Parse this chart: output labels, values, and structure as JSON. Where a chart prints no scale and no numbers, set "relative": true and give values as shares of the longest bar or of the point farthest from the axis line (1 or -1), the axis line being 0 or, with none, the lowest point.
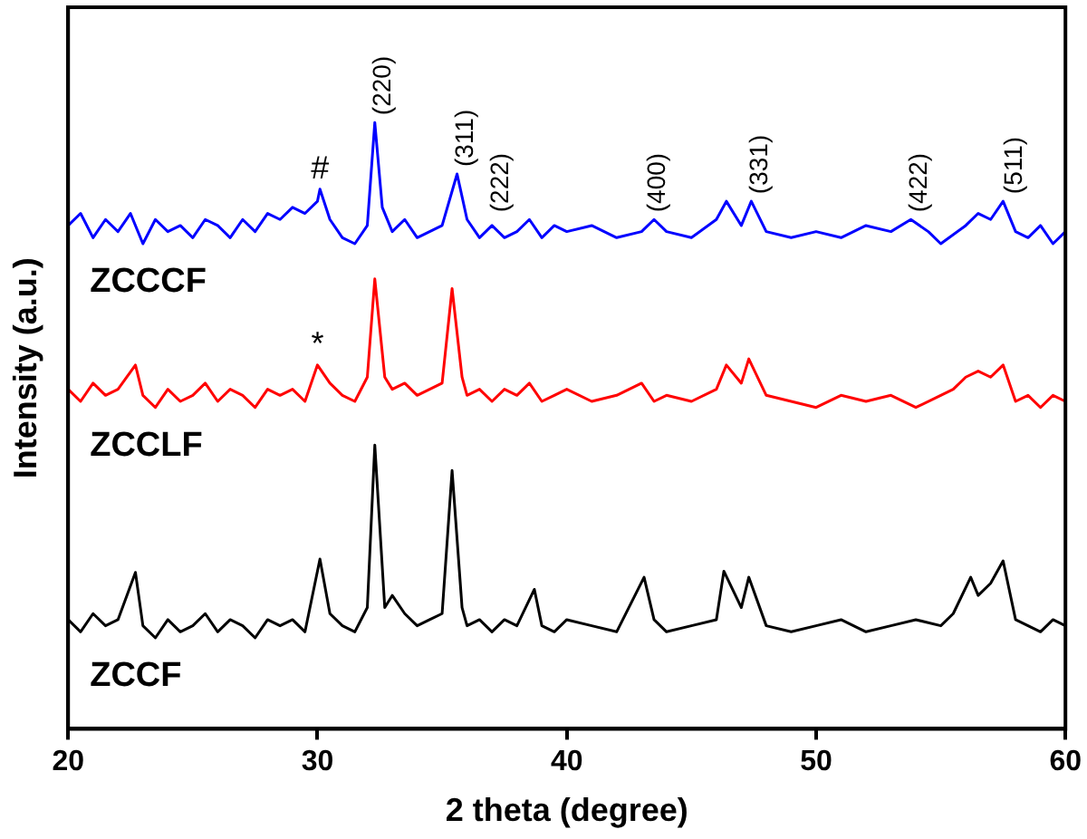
{
  "chart_data": {
    "type": "line",
    "relative": true,
    "xlabel": "2 theta (degree)",
    "ylabel": "Intensity (a.u.)",
    "xlim": [
      20,
      60
    ],
    "xticks": [
      20,
      30,
      40,
      50,
      60
    ],
    "legend": false,
    "grid": false,
    "marker": "none",
    "line_style": "solid",
    "series": [
      {
        "name": "ZCCCF",
        "color": "#0000ff",
        "x": [
          20,
          20.5,
          21,
          21.5,
          22,
          22.5,
          23,
          23.5,
          24,
          24.5,
          25,
          25.5,
          26,
          26.5,
          27,
          27.5,
          28,
          28.5,
          29,
          29.5,
          30,
          30.1,
          30.5,
          31,
          31.5,
          32,
          32.3,
          32.6,
          33,
          33.5,
          34,
          34.5,
          35,
          35.6,
          36,
          36.5,
          37,
          37.5,
          38,
          38.5,
          39,
          39.5,
          40,
          41,
          42,
          43,
          43.5,
          44,
          45,
          46,
          46.4,
          47,
          47.4,
          48,
          49,
          50,
          51,
          52,
          53,
          53.8,
          54.5,
          55,
          56,
          56.5,
          57,
          57.5,
          58,
          58.5,
          59,
          59.5,
          60
        ],
        "values": [
          0.83,
          0.85,
          0.81,
          0.84,
          0.82,
          0.85,
          0.8,
          0.84,
          0.82,
          0.83,
          0.81,
          0.84,
          0.83,
          0.81,
          0.84,
          0.82,
          0.85,
          0.84,
          0.86,
          0.85,
          0.87,
          0.89,
          0.84,
          0.81,
          0.8,
          0.83,
          1.0,
          0.86,
          0.82,
          0.84,
          0.81,
          0.82,
          0.83,
          0.915,
          0.84,
          0.81,
          0.83,
          0.81,
          0.82,
          0.84,
          0.81,
          0.83,
          0.82,
          0.83,
          0.81,
          0.82,
          0.84,
          0.82,
          0.81,
          0.84,
          0.87,
          0.83,
          0.87,
          0.82,
          0.81,
          0.82,
          0.81,
          0.83,
          0.82,
          0.84,
          0.82,
          0.8,
          0.83,
          0.85,
          0.84,
          0.87,
          0.82,
          0.81,
          0.83,
          0.8,
          0.82
        ]
      },
      {
        "name": "ZCCLF",
        "color": "#ff0000",
        "x": [
          20,
          20.5,
          21,
          21.5,
          22,
          22.7,
          23,
          23.5,
          24,
          24.5,
          25,
          25.5,
          26,
          26.5,
          27,
          27.5,
          28,
          28.5,
          29,
          29.5,
          30,
          30.5,
          31,
          31.5,
          32,
          32.3,
          32.7,
          33,
          33.5,
          34,
          34.5,
          35,
          35.4,
          35.8,
          36,
          36.5,
          37,
          37.5,
          38,
          38.5,
          39,
          39.5,
          40,
          41,
          42,
          43,
          43.5,
          44,
          45,
          46,
          46.4,
          47,
          47.3,
          48,
          49,
          50,
          51,
          52,
          53,
          54,
          55,
          55.5,
          56,
          56.5,
          57,
          57.5,
          58,
          58.5,
          59,
          59.5,
          60
        ],
        "values": [
          0.56,
          0.54,
          0.57,
          0.55,
          0.56,
          0.6,
          0.55,
          0.53,
          0.56,
          0.54,
          0.55,
          0.57,
          0.54,
          0.56,
          0.55,
          0.53,
          0.56,
          0.55,
          0.56,
          0.54,
          0.6,
          0.57,
          0.55,
          0.54,
          0.58,
          0.742,
          0.58,
          0.56,
          0.57,
          0.55,
          0.56,
          0.57,
          0.726,
          0.58,
          0.55,
          0.56,
          0.54,
          0.56,
          0.55,
          0.57,
          0.54,
          0.55,
          0.56,
          0.54,
          0.55,
          0.57,
          0.54,
          0.55,
          0.54,
          0.56,
          0.6,
          0.57,
          0.61,
          0.55,
          0.54,
          0.53,
          0.55,
          0.54,
          0.55,
          0.53,
          0.55,
          0.56,
          0.58,
          0.59,
          0.58,
          0.6,
          0.54,
          0.55,
          0.53,
          0.55,
          0.54
        ]
      },
      {
        "name": "ZCCF",
        "color": "#000000",
        "x": [
          20,
          20.5,
          21,
          21.5,
          22,
          22.7,
          23,
          23.5,
          24,
          24.5,
          25,
          25.5,
          26,
          26.5,
          27,
          27.5,
          28,
          28.5,
          29,
          29.5,
          30.1,
          30.5,
          31,
          31.5,
          32,
          32.3,
          32.7,
          33,
          33.5,
          34,
          34.5,
          35,
          35.4,
          35.8,
          36,
          36.5,
          37,
          37.5,
          38,
          38.7,
          39,
          39.5,
          40,
          41,
          42,
          43.1,
          43.5,
          44,
          45,
          46,
          46.3,
          47,
          47.3,
          48,
          49,
          50,
          51,
          52,
          53,
          54,
          55,
          55.5,
          56.2,
          56.5,
          57,
          57.5,
          58,
          58.5,
          59,
          59.5,
          60
        ],
        "values": [
          0.18,
          0.16,
          0.19,
          0.17,
          0.18,
          0.258,
          0.17,
          0.15,
          0.18,
          0.16,
          0.17,
          0.19,
          0.16,
          0.18,
          0.17,
          0.15,
          0.18,
          0.17,
          0.18,
          0.16,
          0.28,
          0.19,
          0.17,
          0.16,
          0.2,
          0.468,
          0.2,
          0.22,
          0.19,
          0.17,
          0.18,
          0.19,
          0.426,
          0.2,
          0.17,
          0.18,
          0.16,
          0.18,
          0.17,
          0.23,
          0.17,
          0.16,
          0.18,
          0.17,
          0.16,
          0.25,
          0.18,
          0.16,
          0.17,
          0.18,
          0.26,
          0.2,
          0.25,
          0.17,
          0.16,
          0.17,
          0.18,
          0.16,
          0.17,
          0.18,
          0.17,
          0.19,
          0.25,
          0.22,
          0.24,
          0.277,
          0.18,
          0.17,
          0.16,
          0.18,
          0.17
        ]
      }
    ],
    "annotations": [
      {
        "text": "#",
        "x": 30.1,
        "y": 0.89
      },
      {
        "text": "(220)",
        "x": 32.3,
        "y": 1.0
      },
      {
        "text": "(311)",
        "x": 35.6,
        "y": 0.915
      },
      {
        "text": "(222)",
        "x": 37.0,
        "y": 0.84
      },
      {
        "text": "(400)",
        "x": 43.3,
        "y": 0.84
      },
      {
        "text": "(331)",
        "x": 47.4,
        "y": 0.87
      },
      {
        "text": "(422)",
        "x": 53.8,
        "y": 0.84
      },
      {
        "text": "(511)",
        "x": 57.6,
        "y": 0.87
      },
      {
        "text": "*",
        "x": 30.0,
        "y": 0.6
      }
    ]
  }
}
